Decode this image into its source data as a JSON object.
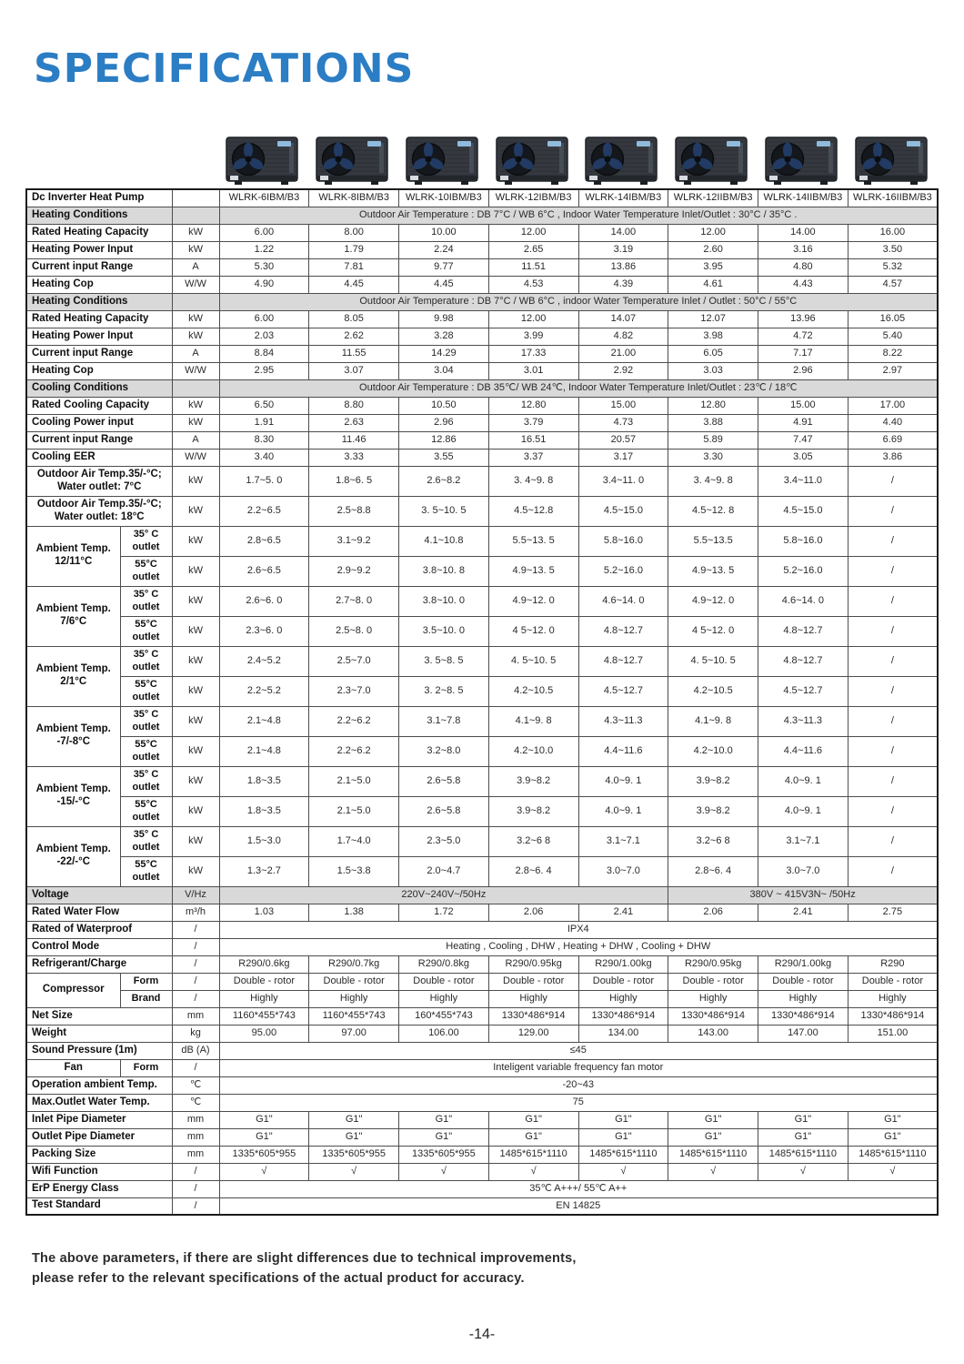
{
  "title": "SPECIFICATIONS",
  "table": {
    "models": [
      "WLRK-6IBM/B3",
      "WLRK-8IBM/B3",
      "WLRK-10IBM/B3",
      "WLRK-12IBM/B3",
      "WLRK-14IBM/B3",
      "WLRK-12IIBM/B3",
      "WLRK-14IIBM/B3",
      "WLRK-16IIBM/B3"
    ],
    "rows": [
      {
        "type": "header",
        "label": "Dc Inverter Heat Pump",
        "unit": "",
        "cells": [
          "WLRK-6IBM/B3",
          "WLRK-8IBM/B3",
          "WLRK-10IBM/B3",
          "WLRK-12IBM/B3",
          "WLRK-14IBM/B3",
          "WLRK-12IIBM/B3",
          "WLRK-14IIBM/B3",
          "WLRK-16IIBM/B3"
        ]
      },
      {
        "type": "section",
        "label": "Heating Conditions",
        "unit": "",
        "text": "Outdoor Air Temperature : DB 7°C / WB 6°C , Indoor Water Temperature Inlet/Outlet : 30°C / 35°C ."
      },
      {
        "type": "data",
        "label": "Rated Heating Capacity",
        "unit": "kW",
        "cells": [
          "6.00",
          "8.00",
          "10.00",
          "12.00",
          "14.00",
          "12.00",
          "14.00",
          "16.00"
        ]
      },
      {
        "type": "data",
        "label": "Heating Power Input",
        "unit": "kW",
        "cells": [
          "1.22",
          "1.79",
          "2.24",
          "2.65",
          "3.19",
          "2.60",
          "3.16",
          "3.50"
        ]
      },
      {
        "type": "data",
        "label": "Current input Range",
        "unit": "A",
        "cells": [
          "5.30",
          "7.81",
          "9.77",
          "11.51",
          "13.86",
          "3.95",
          "4.80",
          "5.32"
        ]
      },
      {
        "type": "data",
        "label": "Heating Cop",
        "unit": "W/W",
        "cells": [
          "4.90",
          "4.45",
          "4.45",
          "4.53",
          "4.39",
          "4.61",
          "4.43",
          "4.57"
        ]
      },
      {
        "type": "section",
        "label": "Heating Conditions",
        "unit": "",
        "text": "Outdoor Air Temperature : DB 7°C / WB 6°C , indoor Water Temperature Inlet / Outlet : 50°C / 55°C"
      },
      {
        "type": "data",
        "label": "Rated Heating Capacity",
        "unit": "kW",
        "cells": [
          "6.00",
          "8.05",
          "9.98",
          "12.00",
          "14.07",
          "12.07",
          "13.96",
          "16.05"
        ]
      },
      {
        "type": "data",
        "label": "Heating Power Input",
        "unit": "kW",
        "cells": [
          "2.03",
          "2.62",
          "3.28",
          "3.99",
          "4.82",
          "3.98",
          "4.72",
          "5.40"
        ]
      },
      {
        "type": "data",
        "label": "Current input Range",
        "unit": "A",
        "cells": [
          "8.84",
          "11.55",
          "14.29",
          "17.33",
          "21.00",
          "6.05",
          "7.17",
          "8.22"
        ]
      },
      {
        "type": "data",
        "label": "Heating Cop",
        "unit": "W/W",
        "cells": [
          "2.95",
          "3.07",
          "3.04",
          "3.01",
          "2.92",
          "3.03",
          "2.96",
          "2.97"
        ]
      },
      {
        "type": "section",
        "label": "Cooling Conditions",
        "unit": "",
        "text": "Outdoor Air Temperature : DB 35℃/ WB 24℃, Indoor Water Temperature Inlet/Outlet : 23℃ / 18℃"
      },
      {
        "type": "data",
        "label": "Rated Cooling Capacity",
        "unit": "kW",
        "cells": [
          "6.50",
          "8.80",
          "10.50",
          "12.80",
          "15.00",
          "12.80",
          "15.00",
          "17.00"
        ]
      },
      {
        "type": "data",
        "label": "Cooling Power input",
        "unit": "kW",
        "cells": [
          "1.91",
          "2.63",
          "2.96",
          "3.79",
          "4.73",
          "3.88",
          "4.91",
          "4.40"
        ]
      },
      {
        "type": "data",
        "label": "Current input Range",
        "unit": "A",
        "cells": [
          "8.30",
          "11.46",
          "12.86",
          "16.51",
          "20.57",
          "5.89",
          "7.47",
          "6.69"
        ]
      },
      {
        "type": "data",
        "label": "Cooling EER",
        "unit": "W/W",
        "cells": [
          "3.40",
          "3.33",
          "3.55",
          "3.37",
          "3.17",
          "3.30",
          "3.05",
          "3.86"
        ]
      },
      {
        "type": "tall",
        "label": "Outdoor Air Temp.35/-°C;\nWater outlet:  7°C",
        "unit": "kW",
        "cells": [
          "1.7~5. 0",
          "1.8~6. 5",
          "2.6~8.2",
          "3. 4~9. 8",
          "3.4~11. 0",
          "3. 4~9. 8",
          "3.4~11.0",
          "/"
        ]
      },
      {
        "type": "tall",
        "label": "Outdoor Air Temp.35/-°C;\nWater outlet:  18°C",
        "unit": "kW",
        "cells": [
          "2.2~6.5",
          "2.5~8.8",
          "3. 5~10. 5",
          "4.5~12.8",
          "4.5~15.0",
          "4.5~12. 8",
          "4.5~15.0",
          "/"
        ]
      },
      {
        "type": "group",
        "label": "Ambient Temp.\n12/11°C",
        "rows": [
          {
            "sub": "35° C\noutlet",
            "unit": "kW",
            "cells": [
              "2.8~6.5",
              "3.1~9.2",
              "4.1~10.8",
              "5.5~13. 5",
              "5.8~16.0",
              "5.5~13.5",
              "5.8~16.0",
              "/"
            ]
          },
          {
            "sub": "55°C\noutlet",
            "unit": "kW",
            "cells": [
              "2.6~6.5",
              "2.9~9.2",
              "3.8~10. 8",
              "4.9~13. 5",
              "5.2~16.0",
              "4.9~13. 5",
              "5.2~16.0",
              "/"
            ]
          }
        ]
      },
      {
        "type": "group",
        "label": "Ambient Temp.\n7/6°C",
        "rows": [
          {
            "sub": "35° C\noutlet",
            "unit": "kW",
            "cells": [
              "2.6~6. 0",
              "2.7~8. 0",
              "3.8~10. 0",
              "4.9~12. 0",
              "4.6~14. 0",
              "4.9~12. 0",
              "4.6~14. 0",
              "/"
            ]
          },
          {
            "sub": "55°C\noutlet",
            "unit": "kW",
            "cells": [
              "2.3~6. 0",
              "2.5~8. 0",
              "3.5~10. 0",
              "4 5~12. 0",
              "4.8~12.7",
              "4 5~12. 0",
              "4.8~12.7",
              "/"
            ]
          }
        ]
      },
      {
        "type": "group",
        "label": "Ambient Temp.\n2/1°C",
        "rows": [
          {
            "sub": "35° C\noutlet",
            "unit": "kW",
            "cells": [
              "2.4~5.2",
              "2.5~7.0",
              "3. 5~8. 5",
              "4. 5~10. 5",
              "4.8~12.7",
              "4. 5~10. 5",
              "4.8~12.7",
              "/"
            ]
          },
          {
            "sub": "55°C\noutlet",
            "unit": "kW",
            "cells": [
              "2.2~5.2",
              "2.3~7.0",
              "3. 2~8. 5",
              "4.2~10.5",
              "4.5~12.7",
              "4.2~10.5",
              "4.5~12.7",
              "/"
            ]
          }
        ]
      },
      {
        "type": "group",
        "label": "Ambient Temp.\n-7/-8°C",
        "rows": [
          {
            "sub": "35° C\noutlet",
            "unit": "kW",
            "cells": [
              "2.1~4.8",
              "2.2~6.2",
              "3.1~7.8",
              "4.1~9. 8",
              "4.3~11.3",
              "4.1~9. 8",
              "4.3~11.3",
              "/"
            ]
          },
          {
            "sub": "55°C\noutlet",
            "unit": "kW",
            "cells": [
              "2.1~4.8",
              "2.2~6.2",
              "3.2~8.0",
              "4.2~10.0",
              "4.4~11.6",
              "4.2~10.0",
              "4.4~11.6",
              "/"
            ]
          }
        ]
      },
      {
        "type": "group",
        "label": "Ambient Temp.\n-15/-°C",
        "rows": [
          {
            "sub": "35° C\noutlet",
            "unit": "kW",
            "cells": [
              "1.8~3.5",
              "2.1~5.0",
              "2.6~5.8",
              "3.9~8.2",
              "4.0~9. 1",
              "3.9~8.2",
              "4.0~9. 1",
              "/"
            ]
          },
          {
            "sub": "55°C\noutlet",
            "unit": "kW",
            "cells": [
              "1.8~3.5",
              "2.1~5.0",
              "2.6~5.8",
              "3.9~8.2",
              "4.0~9. 1",
              "3.9~8.2",
              "4.0~9. 1",
              "/"
            ]
          }
        ]
      },
      {
        "type": "group",
        "label": "Ambient Temp.\n-22/-°C",
        "rows": [
          {
            "sub": "35° C\noutlet",
            "unit": "kW",
            "cells": [
              "1.5~3.0",
              "1.7~4.0",
              "2.3~5.0",
              "3.2~6 8",
              "3.1~7.1",
              "3.2~6 8",
              "3.1~7.1",
              "/"
            ]
          },
          {
            "sub": "55°C\noutlet",
            "unit": "kW",
            "cells": [
              "1.3~2.7",
              "1.5~3.8",
              "2.0~4.7",
              "2.8~6. 4",
              "3.0~7.0",
              "2.8~6. 4",
              "3.0~7.0",
              "/"
            ]
          }
        ]
      },
      {
        "type": "span",
        "section": true,
        "label": "Voltage",
        "unit": "V/Hz",
        "spans": [
          {
            "text": "220V~240V~/50Hz",
            "cols": 5
          },
          {
            "text": "380V ~ 415V3N~ /50Hz",
            "cols": 3
          }
        ]
      },
      {
        "type": "data",
        "label": "Rated Water Flow",
        "unit": "m³/h",
        "cells": [
          "1.03",
          "1.38",
          "1.72",
          "2.06",
          "2.41",
          "2.06",
          "2.41",
          "2.75"
        ]
      },
      {
        "type": "fullspan",
        "label": "Rated of Waterproof",
        "unit": "/",
        "text": "IPX4"
      },
      {
        "type": "fullspan",
        "label": "Control Mode",
        "unit": "/",
        "text": "Heating , Cooling , DHW , Heating + DHW , Cooling + DHW"
      },
      {
        "type": "data",
        "label": "Refrigerant/Charge",
        "unit": "/",
        "cells": [
          "R290/0.6kg",
          "R290/0.7kg",
          "R290/0.8kg",
          "R290/0.95kg",
          "R290/1.00kg",
          "R290/0.95kg",
          "R290/1.00kg",
          "R290"
        ]
      },
      {
        "type": "group2",
        "label": "Compressor",
        "rows": [
          {
            "sub": "Form",
            "unit": "/",
            "cells": [
              "Double - rotor",
              "Double - rotor",
              "Double - rotor",
              "Double - rotor",
              "Double - rotor",
              "Double - rotor",
              "Double - rotor",
              "Double - rotor"
            ]
          },
          {
            "sub": "Brand",
            "unit": "/",
            "cells": [
              "Highly",
              "Highly",
              "Highly",
              "Highly",
              "Highly",
              "Highly",
              "Highly",
              "Highly"
            ]
          }
        ]
      },
      {
        "type": "data",
        "label": "Net Size",
        "unit": "mm",
        "cells": [
          "1160*455*743",
          "1160*455*743",
          "160*455*743",
          "1330*486*914",
          "1330*486*914",
          "1330*486*914",
          "1330*486*914",
          "1330*486*914"
        ]
      },
      {
        "type": "data",
        "label": "Weight",
        "unit": "kg",
        "cells": [
          "95.00",
          "97.00",
          "106.00",
          "129.00",
          "134.00",
          "143.00",
          "147.00",
          "151.00"
        ]
      },
      {
        "type": "fullspan",
        "label": "Sound Pressure (1m)",
        "unit": "dB (A)",
        "text": "≤45"
      },
      {
        "type": "group2",
        "label": "Fan",
        "rows": [
          {
            "sub": "Form",
            "unit": "/",
            "text": "Inteligent variable frequency fan motor"
          }
        ]
      },
      {
        "type": "fullspan",
        "label": "Operation ambient Temp.",
        "unit": "℃",
        "text": "-20~43"
      },
      {
        "type": "fullspan",
        "label": "Max.Outlet Water Temp.",
        "unit": "℃",
        "text": "75"
      },
      {
        "type": "data",
        "label": "Inlet Pipe Diameter",
        "unit": "mm",
        "cells": [
          "G1\"",
          "G1\"",
          "G1\"",
          "G1\"",
          "G1\"",
          "G1\"",
          "G1\"",
          "G1\""
        ]
      },
      {
        "type": "data",
        "label": "Outlet Pipe Diameter",
        "unit": "mm",
        "cells": [
          "G1\"",
          "G1\"",
          "G1\"",
          "G1\"",
          "G1\"",
          "G1\"",
          "G1\"",
          "G1\""
        ]
      },
      {
        "type": "data",
        "label": "Packing Size",
        "unit": "mm",
        "cells": [
          "1335*605*955",
          "1335*605*955",
          "1335*605*955",
          "1485*615*1110",
          "1485*615*1110",
          "1485*615*1110",
          "1485*615*1110",
          "1485*615*1110"
        ]
      },
      {
        "type": "data",
        "label": "Wifi Function",
        "unit": "/",
        "cells": [
          "√",
          "√",
          "√",
          "√",
          "√",
          "√",
          "√",
          "√"
        ]
      },
      {
        "type": "fullspan",
        "label": "ErP Energy Class",
        "unit": "/",
        "text": "35℃ A+++/ 55℃ A++"
      },
      {
        "type": "fullspan",
        "label": "Test Standard",
        "unit": "/",
        "text": "EN 14825"
      }
    ]
  },
  "footer": {
    "line1": "The above parameters, if there are slight differences due to technical improvements,",
    "line2": "please refer to the relevant specifications of the actual product for accuracy.",
    "page_number": "-14-"
  },
  "colors": {
    "accent_blue": "#2b7dc4",
    "section_gray": "#d9d9d9"
  }
}
